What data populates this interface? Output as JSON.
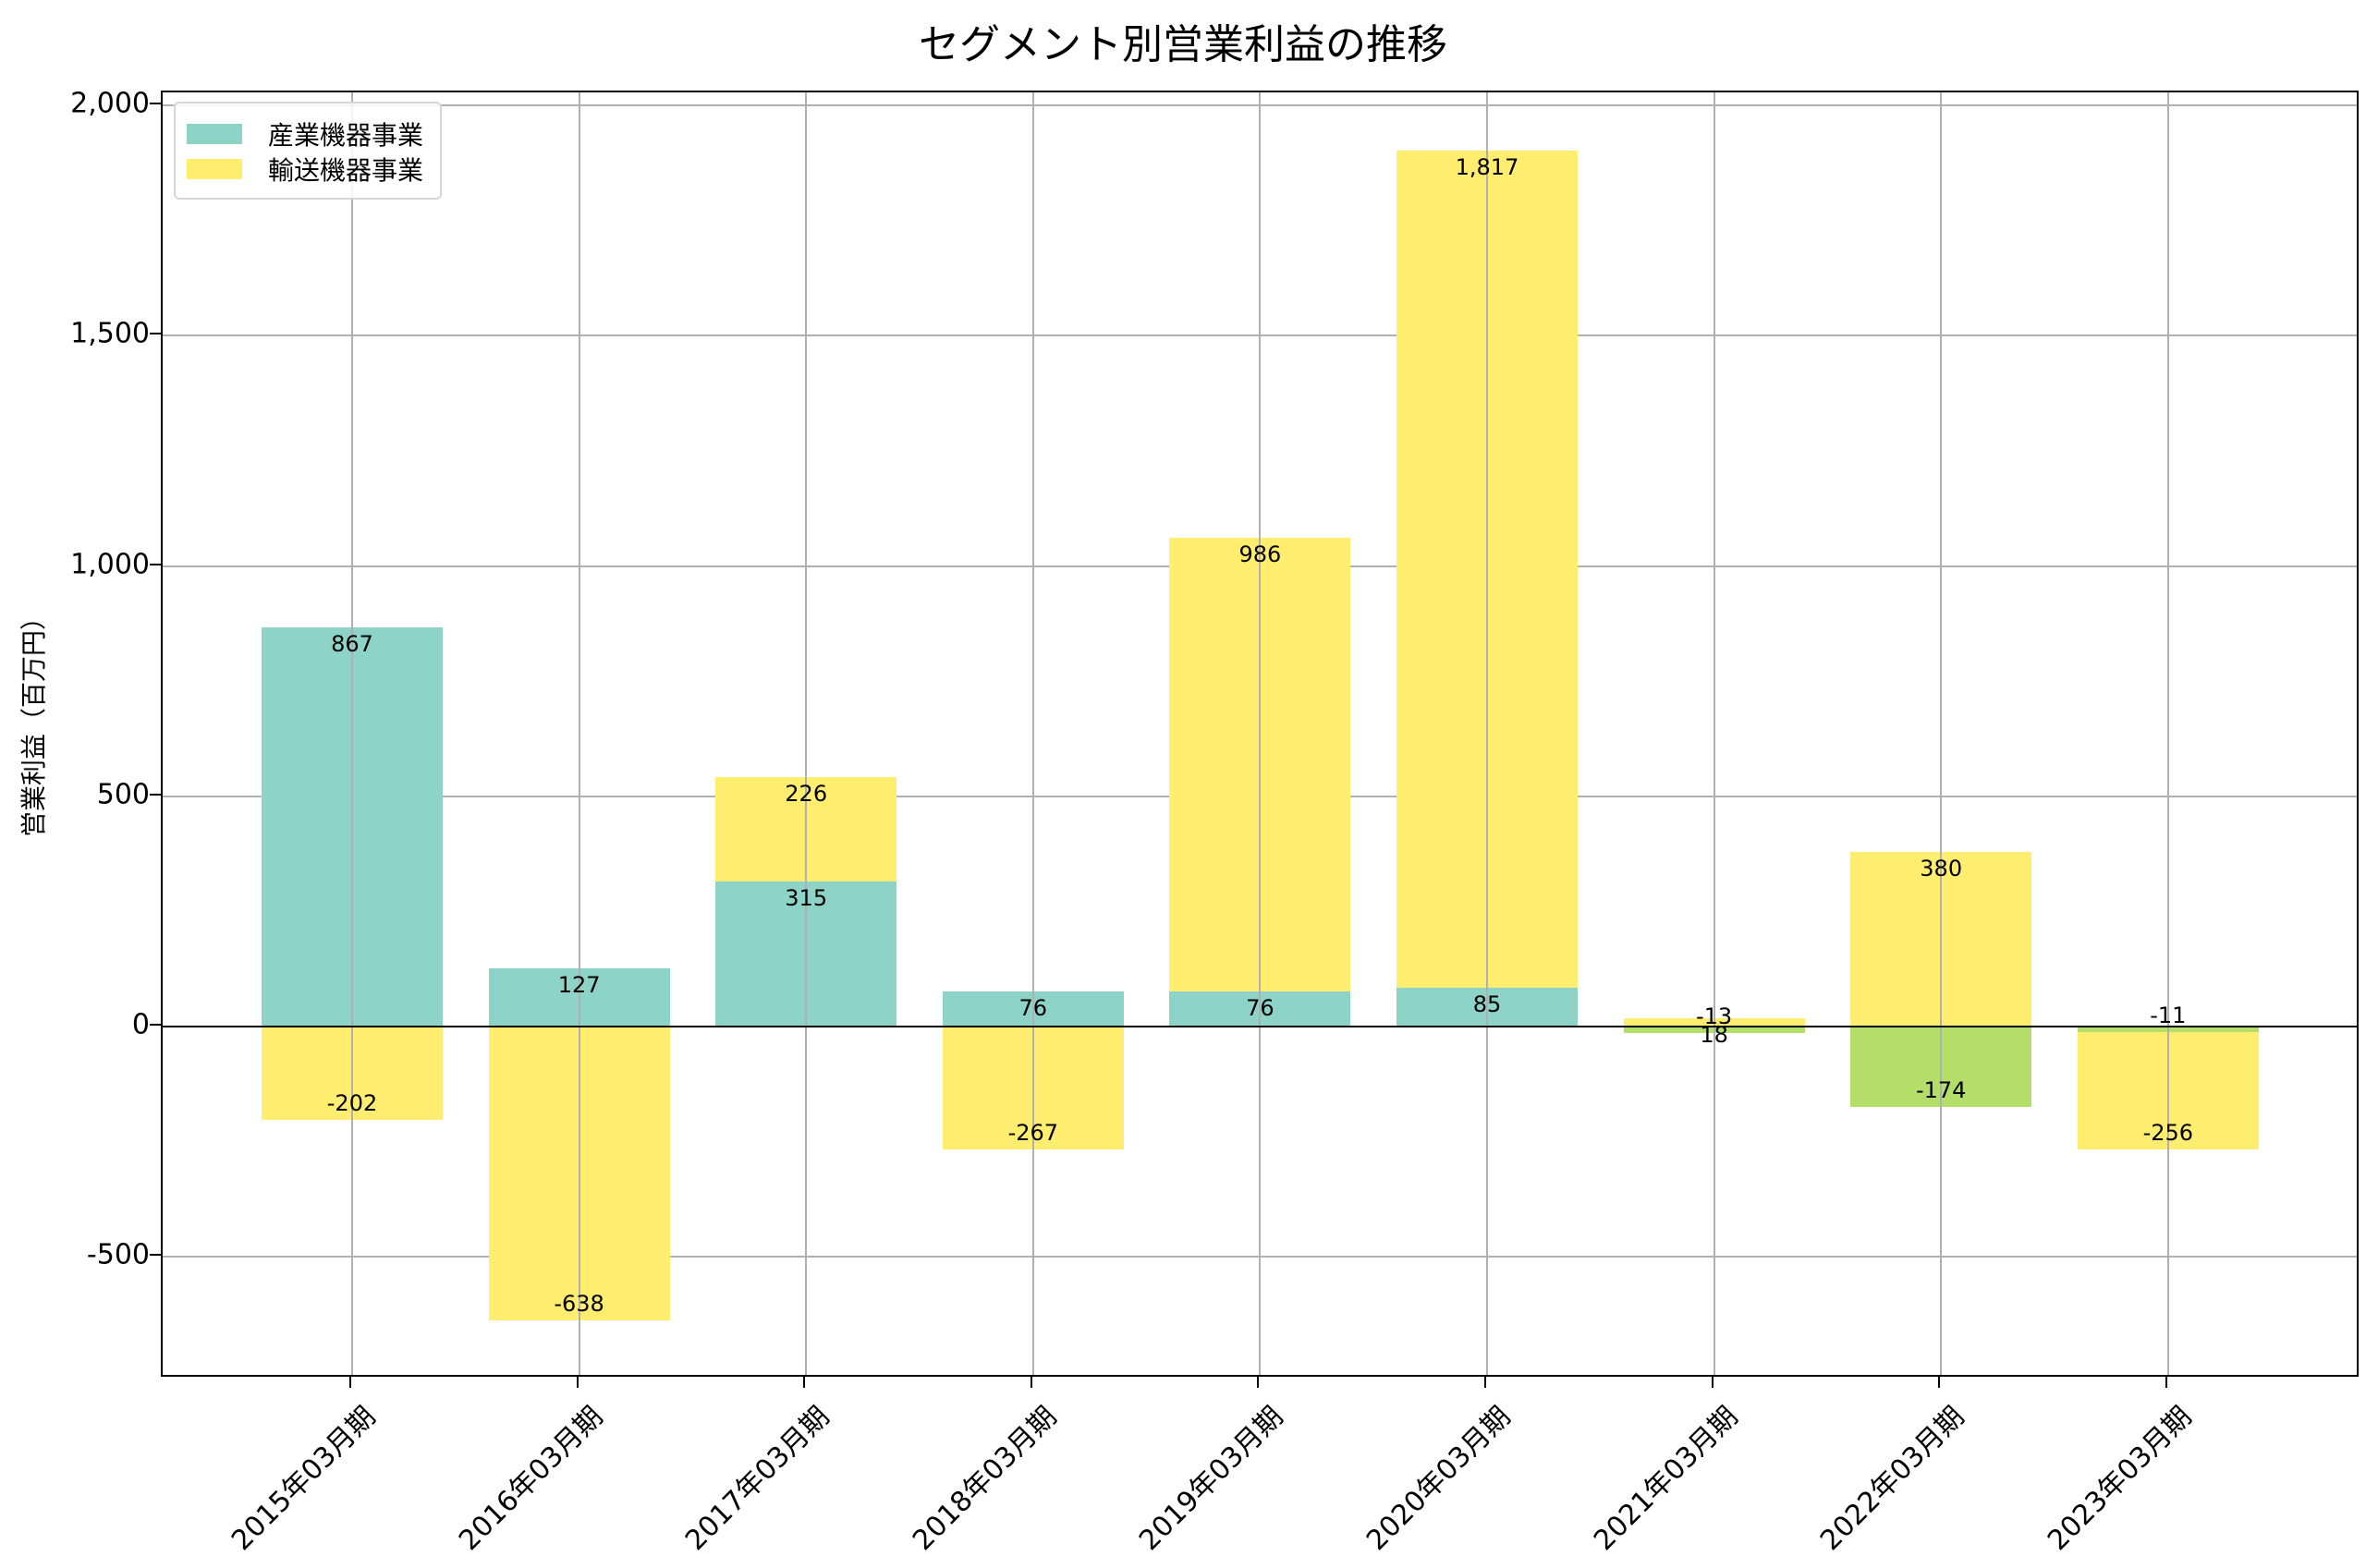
{
  "chart_data": {
    "type": "bar",
    "stacked": true,
    "title": "セグメント別営業利益の推移",
    "xlabel": "",
    "ylabel": "営業利益（百万円）",
    "ylim": [
      -764,
      2028
    ],
    "yticks": [
      -500,
      0,
      500,
      1000,
      1500,
      2000
    ],
    "ytick_labels": [
      "-500",
      "0",
      "500",
      "1,000",
      "1,500",
      "2,000"
    ],
    "grid": true,
    "legend_position": "upper left",
    "categories": [
      "2015年03月期",
      "2016年03月期",
      "2017年03月期",
      "2018年03月期",
      "2019年03月期",
      "2020年03月期",
      "2021年03月期",
      "2022年03月期",
      "2023年03月期"
    ],
    "series": [
      {
        "name": "産業機器事業",
        "color": "#8dd3c7",
        "values": [
          867,
          127,
          315,
          76,
          76,
          85,
          -13,
          -174,
          -11
        ],
        "labels": [
          "867",
          "127",
          "315",
          "76",
          "76",
          "85",
          "-13",
          "-174",
          "-11"
        ]
      },
      {
        "name": "輸送機器事業",
        "color": "#ffed6f",
        "values": [
          -202,
          -638,
          226,
          -267,
          986,
          1817,
          18,
          380,
          -256
        ],
        "labels": [
          "-202",
          "-638",
          "226",
          "-267",
          "986",
          "1,817",
          "18",
          "380",
          "-256"
        ]
      }
    ],
    "negative_industrial_color": "#b3de69"
  },
  "colors": {
    "industrial": "#8dd3c7",
    "industrial_negative": "#b3de69",
    "transport": "#ffed6f",
    "grid": "#b0b0b0"
  },
  "legend": {
    "items": [
      {
        "label": "産業機器事業",
        "color": "#8dd3c7"
      },
      {
        "label": "輸送機器事業",
        "color": "#ffed6f"
      }
    ]
  }
}
